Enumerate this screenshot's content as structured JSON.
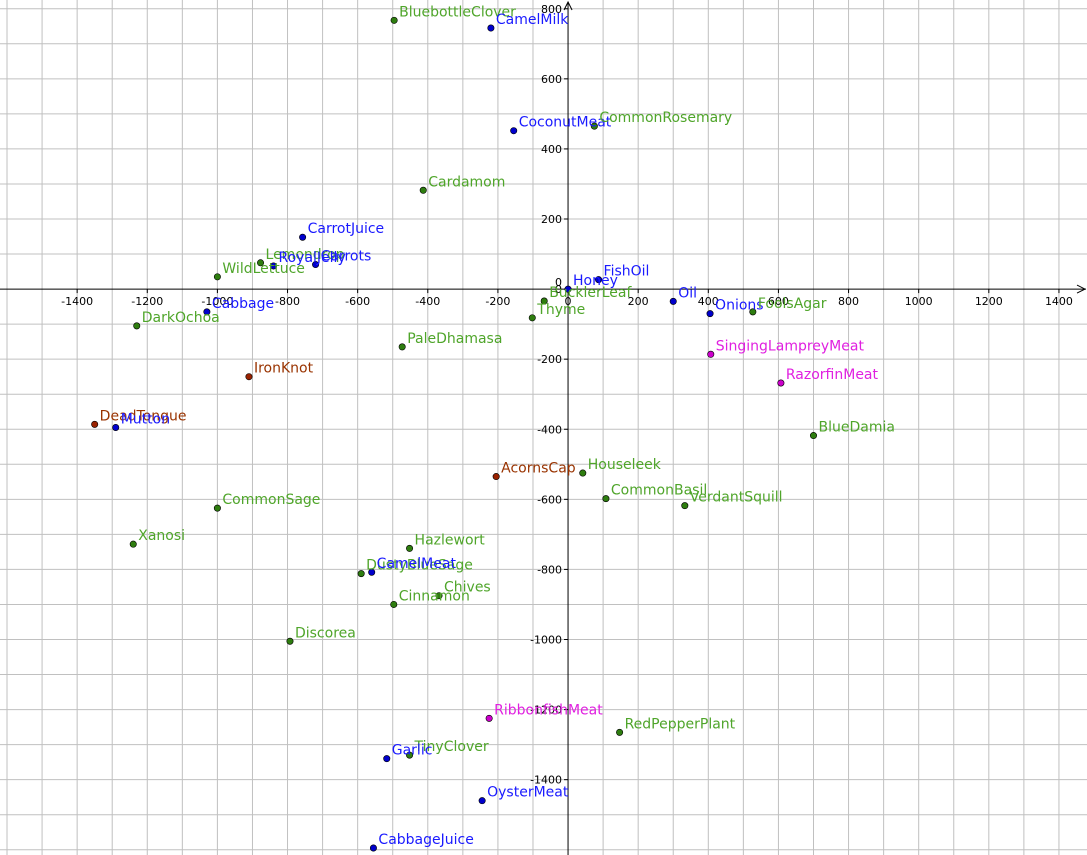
{
  "chart_data": {
    "type": "scatter",
    "title": "",
    "xlabel": "",
    "ylabel": "",
    "xlim": [
      -1620,
      1480
    ],
    "ylim": [
      -1615,
      825
    ],
    "grid": true,
    "grid_minor_step": 100,
    "tick_step": 200,
    "x_ticks": [
      "-1400",
      "-1200",
      "-1000",
      "-800",
      "-600",
      "-400",
      "-200",
      "0",
      "200",
      "400",
      "600",
      "800",
      "1000",
      "1200",
      "1400"
    ],
    "y_ticks": [
      "-1400",
      "-1200",
      "-1000",
      "-800",
      "-600",
      "-400",
      "-200",
      "0",
      "200",
      "400",
      "600",
      "800"
    ],
    "categories": {
      "green": {
        "point_color": "#2e7d0f",
        "label_color": "#4fa52a"
      },
      "blue": {
        "point_color": "#0000cc",
        "label_color": "#1a1aff"
      },
      "magenta": {
        "point_color": "#cc00cc",
        "label_color": "#e020e0"
      },
      "brown": {
        "point_color": "#992200",
        "label_color": "#993300"
      }
    },
    "points": [
      {
        "label": "BluebottleClover",
        "x": -496,
        "y": 767,
        "cat": "green"
      },
      {
        "label": "CamelMilk",
        "x": -220,
        "y": 745,
        "cat": "blue"
      },
      {
        "label": "CoconutMeat",
        "x": -155,
        "y": 452,
        "cat": "blue"
      },
      {
        "label": "CommonRosemary",
        "x": 75,
        "y": 465,
        "cat": "green"
      },
      {
        "label": "Cardamom",
        "x": -413,
        "y": 282,
        "cat": "green"
      },
      {
        "label": "CarrotJuice",
        "x": -757,
        "y": 148,
        "cat": "blue"
      },
      {
        "label": "Lemondrop",
        "x": -877,
        "y": 75,
        "cat": "green"
      },
      {
        "label": "RoyalJelly",
        "x": -840,
        "y": 66,
        "cat": "blue"
      },
      {
        "label": "Carrots",
        "x": -720,
        "y": 70,
        "cat": "blue"
      },
      {
        "label": "WildLettuce",
        "x": -1000,
        "y": 35,
        "cat": "green"
      },
      {
        "label": "FishOil",
        "x": 87,
        "y": 27,
        "cat": "blue"
      },
      {
        "label": "Honey",
        "x": 0,
        "y": 0,
        "cat": "blue"
      },
      {
        "label": "BucklerLeaf",
        "x": -68,
        "y": -34,
        "cat": "green"
      },
      {
        "label": "Oil",
        "x": 300,
        "y": -35,
        "cat": "blue"
      },
      {
        "label": "Onions",
        "x": 405,
        "y": -70,
        "cat": "blue"
      },
      {
        "label": "FoolsAgar",
        "x": 527,
        "y": -65,
        "cat": "green"
      },
      {
        "label": "Cabbage",
        "x": -1030,
        "y": -65,
        "cat": "blue"
      },
      {
        "label": "Thyme",
        "x": -102,
        "y": -82,
        "cat": "green"
      },
      {
        "label": "DarkOchoa",
        "x": -1230,
        "y": -105,
        "cat": "green"
      },
      {
        "label": "PaleDhamasa",
        "x": -473,
        "y": -165,
        "cat": "green"
      },
      {
        "label": "SingingLampreyMeat",
        "x": 407,
        "y": -186,
        "cat": "magenta"
      },
      {
        "label": "IronKnot",
        "x": -910,
        "y": -250,
        "cat": "brown"
      },
      {
        "label": "RazorfinMeat",
        "x": 607,
        "y": -268,
        "cat": "magenta"
      },
      {
        "label": "DeadTongue",
        "x": -1350,
        "y": -386,
        "cat": "brown"
      },
      {
        "label": "Mutton",
        "x": -1290,
        "y": -395,
        "cat": "blue"
      },
      {
        "label": "BlueDamia",
        "x": 700,
        "y": -418,
        "cat": "green"
      },
      {
        "label": "Houseleek",
        "x": 42,
        "y": -525,
        "cat": "green"
      },
      {
        "label": "AcornsCap",
        "x": -205,
        "y": -535,
        "cat": "brown"
      },
      {
        "label": "CommonBasil",
        "x": 108,
        "y": -598,
        "cat": "green"
      },
      {
        "label": "VerdantSquill",
        "x": 333,
        "y": -618,
        "cat": "green"
      },
      {
        "label": "CommonSage",
        "x": -1000,
        "y": -625,
        "cat": "green"
      },
      {
        "label": "Xanosi",
        "x": -1240,
        "y": -728,
        "cat": "green"
      },
      {
        "label": "Hazlewort",
        "x": -452,
        "y": -740,
        "cat": "green"
      },
      {
        "label": "DustyBlueSage",
        "x": -590,
        "y": -812,
        "cat": "green"
      },
      {
        "label": "CamelMeat",
        "x": -560,
        "y": -808,
        "cat": "blue"
      },
      {
        "label": "Chives",
        "x": -368,
        "y": -875,
        "cat": "green"
      },
      {
        "label": "Cinnamon",
        "x": -497,
        "y": -900,
        "cat": "green"
      },
      {
        "label": "Discorea",
        "x": -793,
        "y": -1005,
        "cat": "green"
      },
      {
        "label": "RibbonfishMeat",
        "x": -225,
        "y": -1225,
        "cat": "magenta"
      },
      {
        "label": "RedPepperPlant",
        "x": 147,
        "y": -1265,
        "cat": "green"
      },
      {
        "label": "TinyClover",
        "x": -452,
        "y": -1330,
        "cat": "green"
      },
      {
        "label": "Garlic",
        "x": -517,
        "y": -1340,
        "cat": "blue"
      },
      {
        "label": "OysterMeat",
        "x": -245,
        "y": -1460,
        "cat": "blue"
      },
      {
        "label": "CabbageJuice",
        "x": -555,
        "y": -1595,
        "cat": "blue"
      }
    ]
  }
}
